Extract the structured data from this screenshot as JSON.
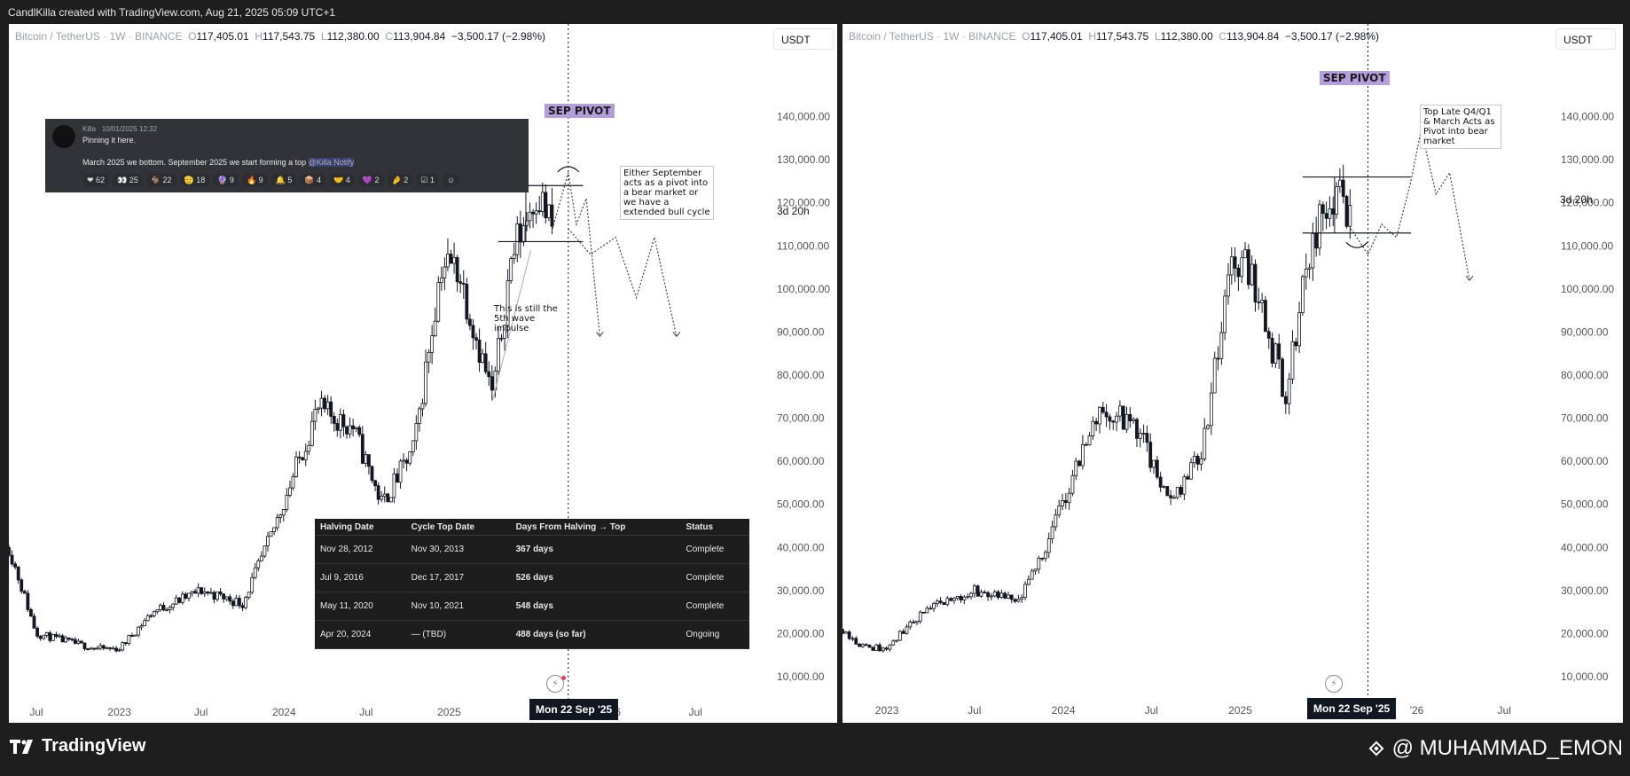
{
  "header": {
    "credit": "CandlKilla created with TradingView.com, Aug 21, 2025 05:09 UTC+1"
  },
  "symbol": {
    "name": "Bitcoin / TetherUS · 1W · BINANCE",
    "open_label": "O",
    "open": "117,405.01",
    "high_label": "H",
    "high": "117,543.75",
    "low_label": "L",
    "low": "112,380.00",
    "close_label": "C",
    "close": "113,904.84",
    "change": "−3,500.17 (−2.98%)"
  },
  "currency": "USDT",
  "countdown": "3d 20h",
  "pivot_label": "SEP PIVOT",
  "crosshair_date": "Mon 22 Sep '25",
  "notes": {
    "left_pivot": "Either September acts as a pivot into a bear market or we have a extended bull cycle",
    "wave": "This is still the 5th wave impulse",
    "right_pivot": "Top Late Q4/Q1 & March Acts as Pivot into bear market"
  },
  "discord": {
    "username": "Killa",
    "timestamp": "10/01/2025 12:32",
    "line1": "Pinning it here.",
    "line2": "March 2025 we bottom. September 2025 we start forming a top",
    "mention": "@Killa Notify",
    "reactions": [
      {
        "icon": "heart-emoji",
        "glyph": "❤",
        "count": "62"
      },
      {
        "icon": "eyes-emoji",
        "glyph": "👀",
        "count": "25"
      },
      {
        "icon": "goat-emoji",
        "glyph": "🐐",
        "count": "22"
      },
      {
        "icon": "salute-emoji",
        "glyph": "🫡",
        "count": "18"
      },
      {
        "icon": "crystal-ball-emoji",
        "glyph": "🔮",
        "count": "9"
      },
      {
        "icon": "fire-emoji",
        "glyph": "🔥",
        "count": "9"
      },
      {
        "icon": "bell-emoji",
        "glyph": "🔔",
        "count": "5"
      },
      {
        "icon": "box-emoji",
        "glyph": "📦",
        "count": "4"
      },
      {
        "icon": "handshake-emoji",
        "glyph": "🤝",
        "count": "4"
      },
      {
        "icon": "purple-heart-emoji",
        "glyph": "💜",
        "count": "2"
      },
      {
        "icon": "pinch-emoji",
        "glyph": "🤌",
        "count": "2"
      },
      {
        "icon": "check-emoji",
        "glyph": "☑",
        "count": "1"
      },
      {
        "icon": "smile-emoji",
        "glyph": "☺",
        "count": ""
      }
    ]
  },
  "halving_table": {
    "headers": [
      "Halving Date",
      "Cycle Top Date",
      "Days From Halving → Top",
      "Status"
    ],
    "rows": [
      [
        "Nov 28, 2012",
        "Nov 30, 2013",
        "367 days",
        "Complete"
      ],
      [
        "Jul 9, 2016",
        "Dec 17, 2017",
        "526 days",
        "Complete"
      ],
      [
        "May 11, 2020",
        "Nov 10, 2021",
        "548 days",
        "Complete"
      ],
      [
        "Apr 20, 2024",
        "— (TBD)",
        "488 days (so far)",
        "Ongoing"
      ]
    ]
  },
  "footer": {
    "brand": "TradingView",
    "author": "@ MUHAMMAD_EMON"
  },
  "colors": {
    "candle": "#131722",
    "pivot": "#b39ddb",
    "background": "#ffffff"
  },
  "chart_data": [
    {
      "type": "line",
      "name_hint": "left panel weekly BTCUSDT",
      "ylim": [
        10000,
        150000
      ],
      "xlim": [
        "2022-05-01",
        "2026-08-01"
      ],
      "y_ticks": [
        "140,000.00",
        "130,000.00",
        "120,000.00",
        "110,000.00",
        "100,000.00",
        "90,000.00",
        "80,000.00",
        "70,000.00",
        "60,000.00",
        "50,000.00",
        "40,000.00",
        "30,000.00",
        "20,000.00",
        "10,000.00"
      ],
      "x_ticks": [
        "Jul",
        "2023",
        "Jul",
        "2024",
        "Jul",
        "2025",
        "'26",
        "Jul"
      ],
      "x": [
        "2022-05-01",
        "2022-07-01",
        "2022-11-10",
        "2023-01-01",
        "2023-03-15",
        "2023-07-01",
        "2023-10-01",
        "2023-12-01",
        "2024-03-15",
        "2024-06-01",
        "2024-08-05",
        "2024-10-15",
        "2024-12-15",
        "2025-01-20",
        "2025-04-07",
        "2025-05-20",
        "2025-07-14",
        "2025-08-18"
      ],
      "values": [
        40000,
        20000,
        16500,
        16500,
        25000,
        30000,
        27000,
        42000,
        72000,
        68000,
        50000,
        63000,
        106000,
        105000,
        75000,
        108000,
        123000,
        114000
      ],
      "projections": [
        {
          "x": [
            "2025-08-18",
            "2025-09-22",
            "2025-10-10",
            "2025-11-01",
            "2025-12-01"
          ],
          "values": [
            114000,
            127000,
            115000,
            121000,
            89000
          ]
        },
        {
          "x": [
            "2025-09-22",
            "2025-11-10",
            "2026-01-05",
            "2026-02-20",
            "2026-04-01",
            "2026-05-20"
          ],
          "values": [
            114000,
            108000,
            112000,
            98000,
            112000,
            89000
          ]
        }
      ]
    },
    {
      "type": "line",
      "name_hint": "right panel weekly BTCUSDT",
      "ylim": [
        10000,
        150000
      ],
      "xlim": [
        "2022-10-01",
        "2026-09-01"
      ],
      "y_ticks": [
        "140,000.00",
        "130,000.00",
        "120,000.00",
        "110,000.00",
        "100,000.00",
        "90,000.00",
        "80,000.00",
        "70,000.00",
        "60,000.00",
        "50,000.00",
        "40,000.00",
        "30,000.00",
        "20,000.00",
        "10,000.00"
      ],
      "x_ticks": [
        "2023",
        "Jul",
        "2024",
        "Jul",
        "2025",
        "'26",
        "Jul"
      ],
      "x": [
        "2022-10-01",
        "2022-11-10",
        "2023-01-01",
        "2023-03-15",
        "2023-07-01",
        "2023-10-01",
        "2023-12-01",
        "2024-03-15",
        "2024-06-01",
        "2024-08-05",
        "2024-10-15",
        "2024-12-15",
        "2025-01-20",
        "2025-04-07",
        "2025-05-20",
        "2025-07-14",
        "2025-08-18"
      ],
      "values": [
        21000,
        17000,
        16500,
        25000,
        30000,
        27000,
        42000,
        72000,
        68000,
        50000,
        63000,
        106000,
        105000,
        75000,
        108000,
        123000,
        114000
      ],
      "projections": [
        {
          "x": [
            "2025-08-18",
            "2025-09-22",
            "2025-10-20",
            "2025-11-20",
            "2025-12-20",
            "2026-01-10",
            "2026-02-10",
            "2026-03-10",
            "2026-04-20"
          ],
          "values": [
            114000,
            108000,
            115000,
            112000,
            125000,
            137000,
            122000,
            127000,
            102000
          ]
        }
      ]
    }
  ]
}
